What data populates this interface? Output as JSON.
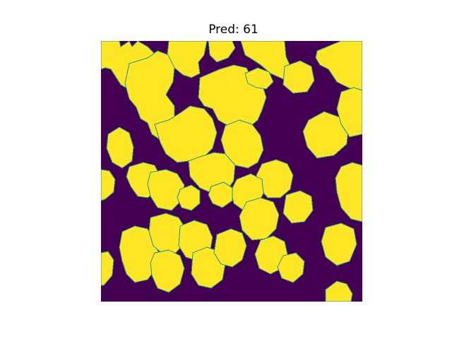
{
  "figure": {
    "title": "Pred: 61"
  },
  "mask_image": {
    "kind": "binary segmentation mask",
    "colormap": "viridis",
    "background_color": "#440154",
    "foreground_color": "#fde725",
    "edge_color": "#21918c"
  }
}
